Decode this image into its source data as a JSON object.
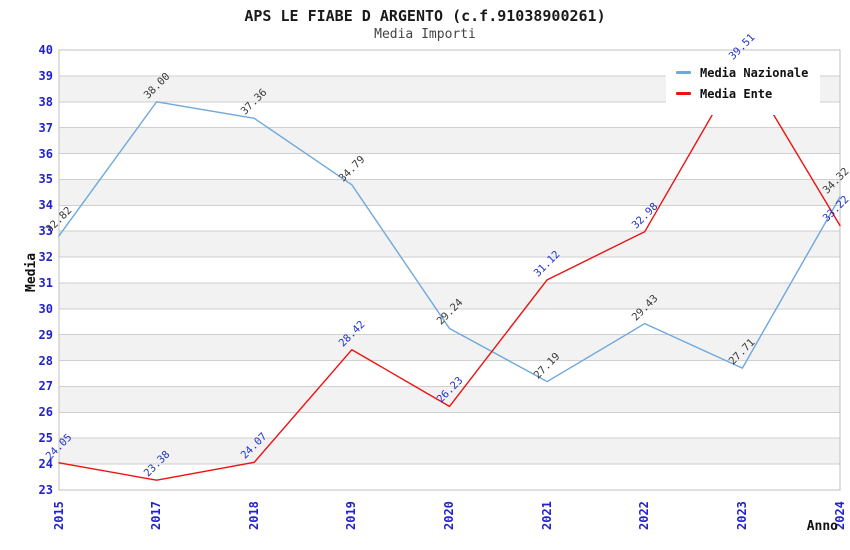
{
  "header": {
    "title": "APS LE FIABE D ARGENTO (c.f.91038900261)",
    "subtitle": "Media Importi"
  },
  "chart_data": {
    "type": "line",
    "x_categories": [
      "2015",
      "2017",
      "2018",
      "2019",
      "2020",
      "2021",
      "2022",
      "2023",
      "2024"
    ],
    "series": [
      {
        "name": "Media Nazionale",
        "color": "#6FA8DC",
        "label_color": "#3A3A3A",
        "values": [
          32.82,
          38.0,
          37.36,
          34.79,
          29.24,
          27.19,
          29.43,
          27.71,
          34.32
        ]
      },
      {
        "name": "Media Ente",
        "color": "#EE1111",
        "label_color": "#2233CC",
        "values": [
          24.05,
          23.38,
          24.07,
          28.42,
          26.23,
          31.12,
          32.98,
          39.51,
          33.22
        ]
      }
    ],
    "xlabel": "Anno",
    "ylabel": "Media",
    "ylim": [
      23,
      40
    ],
    "ytick_step": 1,
    "value_label_decimals": 2,
    "grid": "horizontal-bands",
    "legend_position": "top-right"
  },
  "style": {
    "tick_color": "#2222CC",
    "band_color": "#F2F2F2",
    "grid_color": "#CFCFCF",
    "plot_border_color": "#C0C0C0",
    "background": "#FFFFFF"
  }
}
